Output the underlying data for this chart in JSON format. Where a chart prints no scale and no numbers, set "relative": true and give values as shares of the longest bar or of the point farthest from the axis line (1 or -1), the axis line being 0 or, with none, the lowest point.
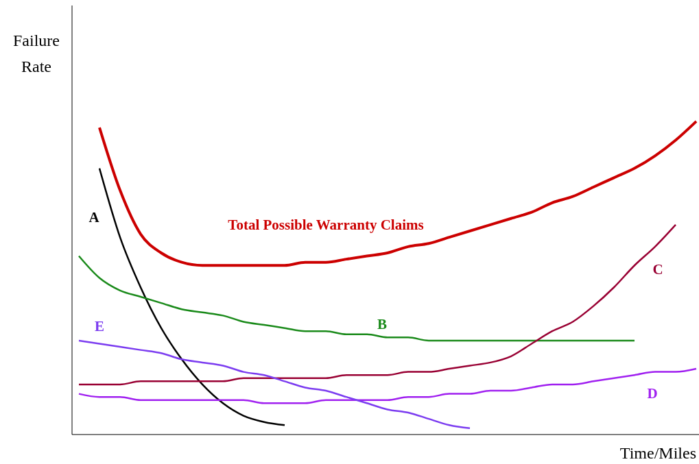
{
  "chart_data": {
    "type": "line",
    "relative": true,
    "xlabel": "Time/Miles",
    "ylabel": "Failure Rate",
    "categories": [
      null,
      null,
      null,
      null,
      null,
      null,
      null,
      null,
      null,
      null,
      null,
      null,
      null,
      null,
      null,
      null,
      null,
      null,
      null,
      null,
      null,
      null,
      null,
      null,
      null,
      null,
      null,
      null,
      null,
      null,
      null
    ],
    "series": [
      {
        "name": "Total Possible Warranty Claims",
        "color": "#cc0000",
        "values": [
          null,
          0.98,
          0.78,
          0.64,
          0.58,
          0.55,
          0.54,
          0.54,
          0.54,
          0.54,
          0.54,
          0.55,
          0.55,
          0.56,
          0.57,
          0.58,
          0.6,
          0.61,
          0.63,
          0.65,
          0.67,
          0.69,
          0.71,
          0.74,
          0.76,
          0.79,
          0.82,
          0.85,
          0.89,
          0.94,
          1
        ]
      },
      {
        "name": "A",
        "color": "#000000",
        "values": [
          null,
          0.85,
          0.63,
          0.47,
          0.34,
          0.24,
          0.16,
          0.1,
          0.06,
          0.04,
          0.03,
          null,
          null,
          null,
          null,
          null,
          null,
          null,
          null,
          null,
          null,
          null,
          null,
          null,
          null,
          null,
          null,
          null,
          null,
          null,
          null
        ]
      },
      {
        "name": "B",
        "color": "#1a8a1a",
        "values": [
          0.57,
          0.5,
          0.46,
          0.44,
          0.42,
          0.4,
          0.39,
          0.38,
          0.36,
          0.35,
          0.34,
          0.33,
          0.33,
          0.32,
          0.32,
          0.31,
          0.31,
          0.3,
          0.3,
          0.3,
          0.3,
          0.3,
          0.3,
          0.3,
          0.3,
          0.3,
          0.3,
          0.3,
          null,
          null,
          null
        ]
      },
      {
        "name": "C",
        "color": "#990033",
        "values": [
          0.16,
          0.16,
          0.16,
          0.17,
          0.17,
          0.17,
          0.17,
          0.17,
          0.18,
          0.18,
          0.18,
          0.18,
          0.18,
          0.19,
          0.19,
          0.19,
          0.2,
          0.2,
          0.21,
          0.22,
          0.23,
          0.25,
          0.29,
          0.33,
          0.36,
          0.41,
          0.47,
          0.54,
          0.6,
          0.67,
          null
        ]
      },
      {
        "name": "D",
        "color": "#a020f0",
        "values": [
          0.13,
          0.12,
          0.12,
          0.11,
          0.11,
          0.11,
          0.11,
          0.11,
          0.11,
          0.1,
          0.1,
          0.1,
          0.11,
          0.11,
          0.11,
          0.11,
          0.12,
          0.12,
          0.13,
          0.13,
          0.14,
          0.14,
          0.15,
          0.16,
          0.16,
          0.17,
          0.18,
          0.19,
          0.2,
          0.2,
          0.21
        ]
      },
      {
        "name": "E",
        "color": "#7b3cf0",
        "values": [
          0.3,
          0.29,
          0.28,
          0.27,
          0.26,
          0.24,
          0.23,
          0.22,
          0.2,
          0.19,
          0.17,
          0.15,
          0.14,
          0.12,
          0.1,
          0.08,
          0.07,
          0.05,
          0.03,
          0.02,
          null,
          null,
          null,
          null,
          null,
          null,
          null,
          null,
          null,
          null,
          null
        ]
      }
    ]
  }
}
